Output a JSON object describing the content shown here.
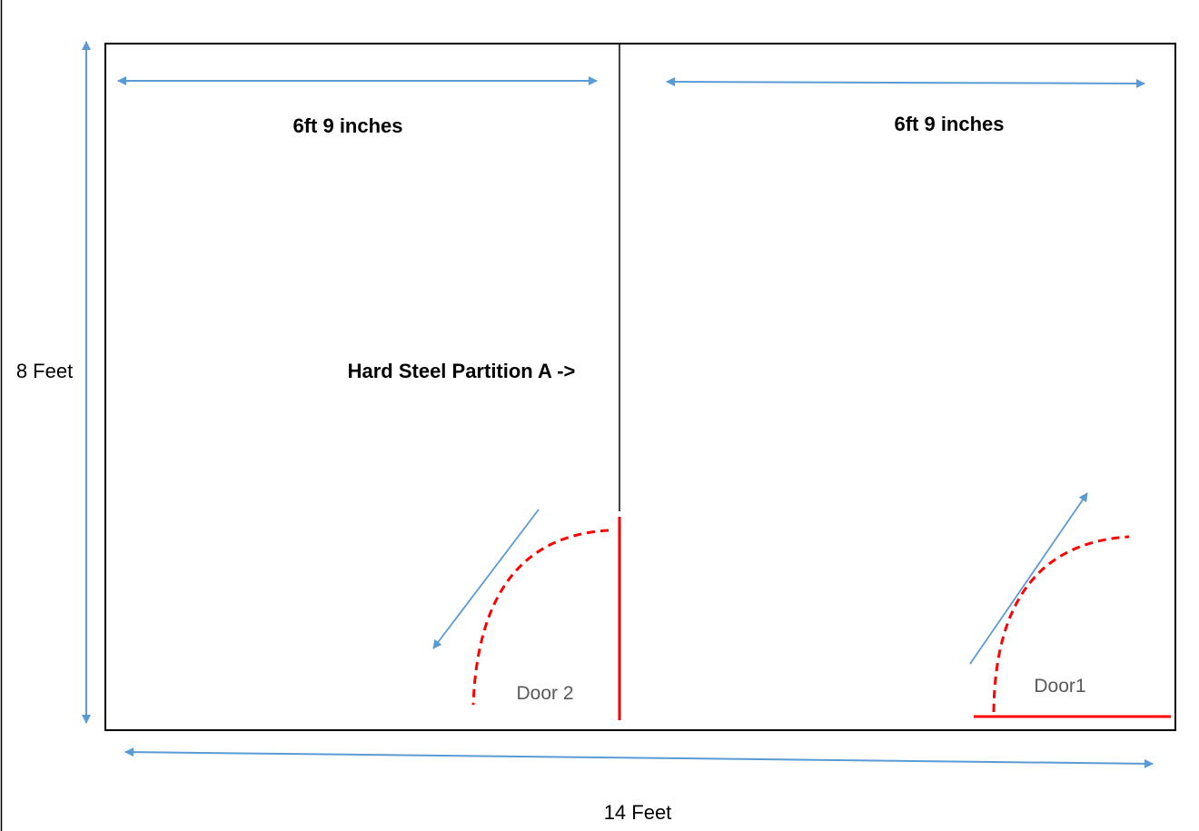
{
  "colors": {
    "wall": "#000000",
    "arrow": "#5b9bd5",
    "door": "#ff0000",
    "door_label": "#595959"
  },
  "labels": {
    "left_width": "6ft 9 inches",
    "right_width": "6ft 9 inches",
    "height": "8 Feet",
    "total_width": "14 Feet",
    "partition": "Hard Steel Partition A ->",
    "door_left": "Door 2",
    "door_right": "Door1"
  }
}
